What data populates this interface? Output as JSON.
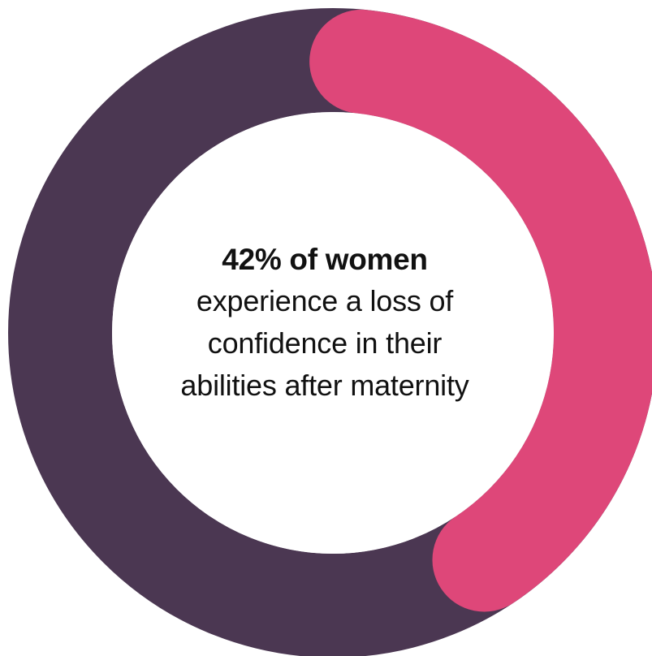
{
  "colors": {
    "track": "#4b3752",
    "highlight": "#de4779",
    "center": "#ffffff",
    "text": "#111111"
  },
  "headline": "42% of women",
  "body_lines": [
    "experience a loss of",
    "confidence in their",
    "abilities after maternity"
  ],
  "chart_data": {
    "type": "pie",
    "style": "donut",
    "slices": [
      {
        "value": 42,
        "color": "#de4779"
      },
      {
        "value": 58,
        "color": "#4b3752"
      }
    ],
    "highlight_slice_cap": "rounded"
  }
}
